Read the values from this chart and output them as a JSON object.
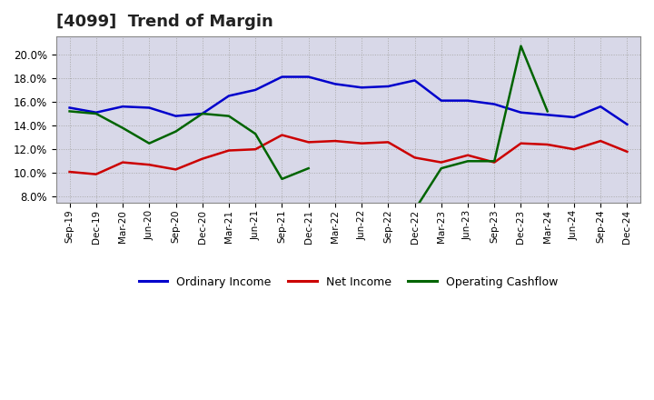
{
  "title": "[4099]  Trend of Margin",
  "x_labels": [
    "Sep-19",
    "Dec-19",
    "Mar-20",
    "Jun-20",
    "Sep-20",
    "Dec-20",
    "Mar-21",
    "Jun-21",
    "Sep-21",
    "Dec-21",
    "Mar-22",
    "Jun-22",
    "Sep-22",
    "Dec-22",
    "Mar-23",
    "Jun-23",
    "Sep-23",
    "Dec-23",
    "Mar-24",
    "Jun-24",
    "Sep-24",
    "Dec-24"
  ],
  "ordinary_income": [
    15.5,
    15.1,
    15.6,
    15.5,
    14.8,
    15.0,
    16.5,
    17.0,
    18.1,
    18.1,
    17.5,
    17.2,
    17.3,
    17.8,
    16.1,
    16.1,
    15.8,
    15.1,
    14.9,
    14.7,
    15.6,
    14.1
  ],
  "net_income": [
    10.1,
    9.9,
    10.9,
    10.7,
    10.3,
    11.2,
    11.9,
    12.0,
    13.2,
    12.6,
    12.7,
    12.5,
    12.6,
    11.3,
    10.9,
    11.5,
    10.9,
    12.5,
    12.4,
    12.0,
    12.7,
    11.8
  ],
  "ocf_seg1_x": [
    0,
    1,
    2,
    3,
    4,
    5,
    6,
    7,
    8,
    9
  ],
  "ocf_seg1_y": [
    15.2,
    15.0,
    13.8,
    12.5,
    13.5,
    15.0,
    14.8,
    13.3,
    9.5,
    10.4
  ],
  "ocf_seg2_x": [
    13,
    14,
    15,
    16,
    17,
    18
  ],
  "ocf_seg2_y": [
    6.9,
    10.4,
    11.0,
    11.0,
    20.7,
    15.2
  ],
  "colors": {
    "ordinary_income": "#0000CC",
    "net_income": "#CC0000",
    "operating_cashflow": "#006400"
  },
  "ylim": [
    7.5,
    21.5
  ],
  "yticks": [
    8.0,
    10.0,
    12.0,
    14.0,
    16.0,
    18.0,
    20.0
  ],
  "background_color": "#FFFFFF",
  "plot_bg_color": "#D8D8E8",
  "grid_color": "#AAAAAA",
  "title_fontsize": 13,
  "legend_labels": [
    "Ordinary Income",
    "Net Income",
    "Operating Cashflow"
  ],
  "linewidth": 1.8
}
